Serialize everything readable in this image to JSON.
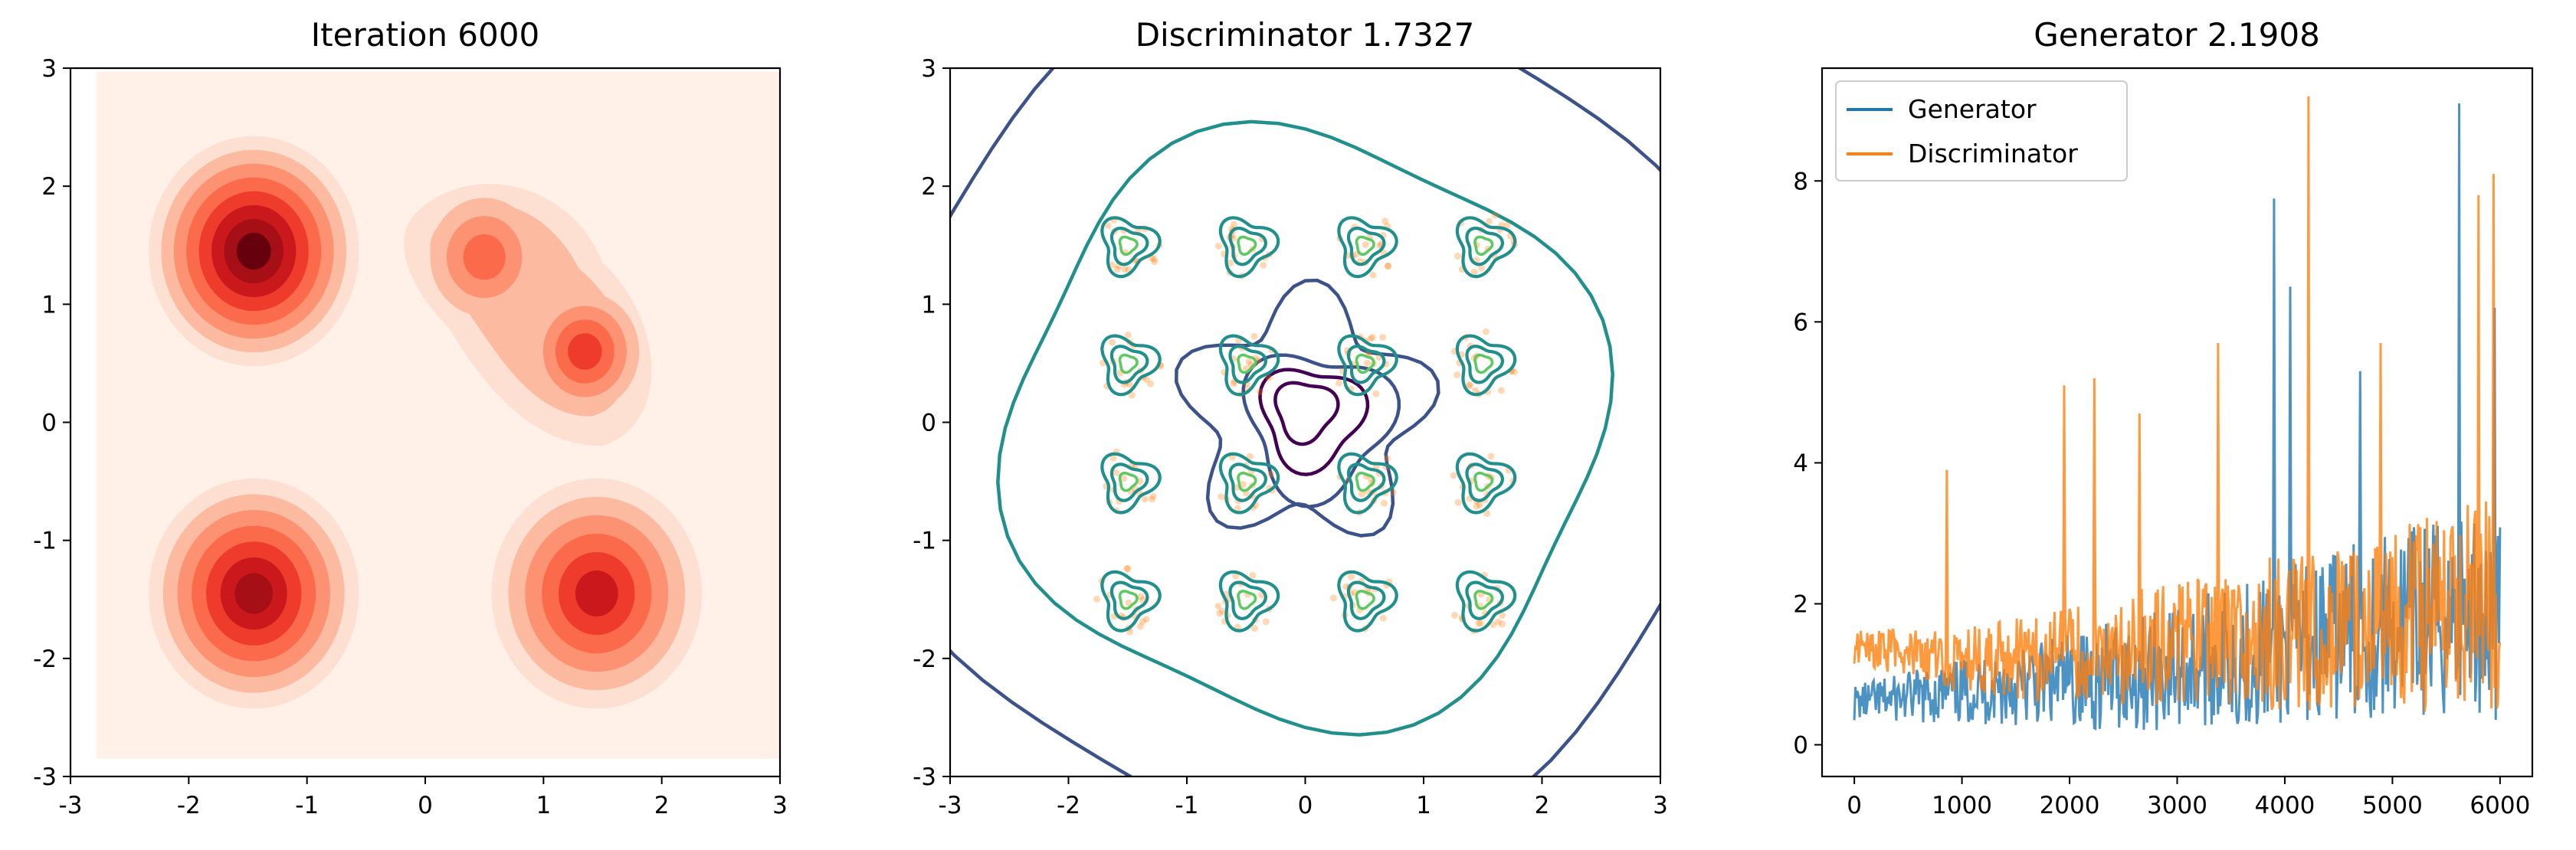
{
  "chart_data": [
    {
      "type": "heatmap",
      "title": "Iteration 6000",
      "xlim": [
        -3,
        3
      ],
      "ylim": [
        -3,
        3
      ],
      "x_ticks": [
        "-3",
        "-2",
        "-1",
        "0",
        "1",
        "2",
        "3"
      ],
      "y_ticks": [
        "-3",
        "-2",
        "-1",
        "0",
        "1",
        "2",
        "3"
      ],
      "colormap": "Reds",
      "density_peaks": [
        {
          "x": -1.45,
          "y": 1.45,
          "level": 1.0
        },
        {
          "x": -1.45,
          "y": -1.45,
          "level": 0.9
        },
        {
          "x": 1.45,
          "y": -1.45,
          "level": 0.7
        },
        {
          "x": 0.5,
          "y": 1.4,
          "level": 0.35
        },
        {
          "x": 1.35,
          "y": 0.6,
          "level": 0.45
        }
      ]
    },
    {
      "type": "contour",
      "title": "Discriminator 1.7327",
      "xlim": [
        -3,
        3
      ],
      "ylim": [
        -3,
        3
      ],
      "x_ticks": [
        "-3",
        "-2",
        "-1",
        "0",
        "1",
        "2",
        "3"
      ],
      "y_ticks": [
        "-3",
        "-2",
        "-1",
        "0",
        "1",
        "2",
        "3"
      ],
      "colormap": "viridis",
      "sample_color": "#ff7f0e",
      "mode_centers": [
        {
          "x": -1.5,
          "y": 1.5
        },
        {
          "x": -0.5,
          "y": 1.5
        },
        {
          "x": 0.5,
          "y": 1.5
        },
        {
          "x": 1.5,
          "y": 1.5
        },
        {
          "x": -1.5,
          "y": 0.5
        },
        {
          "x": -0.5,
          "y": 0.5
        },
        {
          "x": 0.5,
          "y": 0.5
        },
        {
          "x": 1.5,
          "y": 0.5
        },
        {
          "x": -1.5,
          "y": -0.5
        },
        {
          "x": -0.5,
          "y": -0.5
        },
        {
          "x": 0.5,
          "y": -0.5
        },
        {
          "x": 1.5,
          "y": -0.5
        },
        {
          "x": -1.5,
          "y": -1.5
        },
        {
          "x": -0.5,
          "y": -1.5
        },
        {
          "x": 0.5,
          "y": -1.5
        },
        {
          "x": 1.5,
          "y": -1.5
        }
      ]
    },
    {
      "type": "line",
      "title": "Generator 2.1908",
      "xlim": [
        -300,
        6300
      ],
      "ylim": [
        -0.45,
        9.6
      ],
      "x_ticks": [
        "0",
        "1000",
        "2000",
        "3000",
        "4000",
        "5000",
        "6000"
      ],
      "y_ticks": [
        "0",
        "2",
        "4",
        "6",
        "8"
      ],
      "legend_position": "upper-left",
      "series": [
        {
          "name": "Generator",
          "color": "#1f77b4",
          "trend": [
            [
              0,
              0.6
            ],
            [
              1000,
              0.75
            ],
            [
              2000,
              0.9
            ],
            [
              3000,
              1.1
            ],
            [
              4000,
              1.4
            ],
            [
              5000,
              1.7
            ],
            [
              6000,
              1.9
            ]
          ],
          "spikes": [
            [
              3900,
              7.75
            ],
            [
              5620,
              9.1
            ],
            [
              4050,
              6.5
            ],
            [
              5950,
              6.2
            ],
            [
              4700,
              5.3
            ]
          ]
        },
        {
          "name": "Discriminator",
          "color": "#ff7f0e",
          "trend": [
            [
              0,
              1.4
            ],
            [
              1000,
              1.2
            ],
            [
              2000,
              1.25
            ],
            [
              3000,
              1.45
            ],
            [
              4000,
              1.6
            ],
            [
              5000,
              1.8
            ],
            [
              6000,
              2.0
            ]
          ],
          "spikes": [
            [
              4220,
              9.2
            ],
            [
              5940,
              8.1
            ],
            [
              5800,
              7.8
            ],
            [
              2230,
              5.2
            ],
            [
              1950,
              5.1
            ],
            [
              3380,
              5.7
            ],
            [
              4890,
              5.7
            ],
            [
              2650,
              4.7
            ],
            [
              860,
              3.9
            ]
          ]
        }
      ]
    }
  ]
}
